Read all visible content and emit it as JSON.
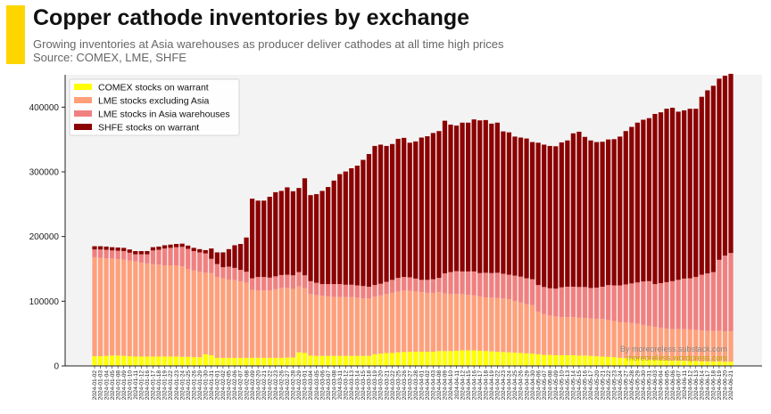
{
  "header": {
    "title": "Copper cathode inventories by exchange",
    "subtitle": "Growing inventories at Asia warehouses as producer deliver cathodes at all time high prices",
    "source": "Source: COMEX, LME, SHFE"
  },
  "credits": {
    "line1": "By moreoreless.substack.com",
    "line2": "moreoreless.wordpress.com"
  },
  "colors": {
    "accent": "#ffd500",
    "comex": "#ffff00",
    "lme_ex_asia": "#ffa07a",
    "lme_asia": "#f08080",
    "shfe": "#8b0000",
    "plot_bg": "#f3f3f3"
  },
  "chart_data": {
    "type": "bar",
    "stacked": true,
    "title": "Copper cathode inventories by exchange",
    "xlabel": "",
    "ylabel": "",
    "ylim": [
      0,
      450000
    ],
    "yticks": [
      0,
      100000,
      200000,
      300000,
      400000
    ],
    "ytick_labels": [
      "0",
      "100000",
      "200000",
      "300000",
      "400000"
    ],
    "legend_position": "top-left",
    "categories": [
      "2024-01-02",
      "2024-01-03",
      "2024-01-04",
      "2024-01-05",
      "2024-01-08",
      "2024-01-09",
      "2024-01-10",
      "2024-01-11",
      "2024-01-12",
      "2024-01-16",
      "2024-01-17",
      "2024-01-18",
      "2024-01-19",
      "2024-01-22",
      "2024-01-23",
      "2024-01-24",
      "2024-01-25",
      "2024-01-26",
      "2024-01-29",
      "2024-01-30",
      "2024-01-31",
      "2024-02-01",
      "2024-02-02",
      "2024-02-05",
      "2024-02-06",
      "2024-02-07",
      "2024-02-08",
      "2024-02-09",
      "2024-02-20",
      "2024-02-21",
      "2024-02-22",
      "2024-02-23",
      "2024-02-26",
      "2024-02-27",
      "2024-02-28",
      "2024-02-29",
      "2024-03-01",
      "2024-03-04",
      "2024-03-05",
      "2024-03-06",
      "2024-03-07",
      "2024-03-08",
      "2024-03-11",
      "2024-03-12",
      "2024-03-13",
      "2024-03-14",
      "2024-03-15",
      "2024-03-18",
      "2024-03-19",
      "2024-03-20",
      "2024-03-21",
      "2024-03-22",
      "2024-03-25",
      "2024-03-26",
      "2024-03-27",
      "2024-03-28",
      "2024-04-01",
      "2024-04-02",
      "2024-04-03",
      "2024-04-08",
      "2024-04-09",
      "2024-04-10",
      "2024-04-11",
      "2024-04-12",
      "2024-04-15",
      "2024-04-16",
      "2024-04-17",
      "2024-04-18",
      "2024-04-19",
      "2024-04-22",
      "2024-04-23",
      "2024-04-24",
      "2024-04-25",
      "2024-04-26",
      "2024-04-29",
      "2024-04-30",
      "2024-05-06",
      "2024-05-07",
      "2024-05-08",
      "2024-05-09",
      "2024-05-10",
      "2024-05-13",
      "2024-05-14",
      "2024-05-15",
      "2024-05-16",
      "2024-05-17",
      "2024-05-20",
      "2024-05-21",
      "2024-05-22",
      "2024-05-23",
      "2024-05-24",
      "2024-05-27",
      "2024-05-28",
      "2024-05-29",
      "2024-05-30",
      "2024-05-31",
      "2024-06-03",
      "2024-06-04",
      "2024-06-05",
      "2024-06-06",
      "2024-06-07",
      "2024-06-11",
      "2024-06-12",
      "2024-06-13",
      "2024-06-14",
      "2024-06-17",
      "2024-06-18",
      "2024-06-19",
      "2024-06-20",
      "2024-06-21"
    ],
    "series": [
      {
        "name": "COMEX stocks on warrant",
        "color": "#ffff00",
        "values": [
          15000,
          15000,
          15500,
          16000,
          16000,
          15500,
          15000,
          14500,
          14500,
          14500,
          14500,
          14500,
          14500,
          14500,
          14500,
          14000,
          14000,
          13500,
          13500,
          18000,
          16500,
          12500,
          12500,
          12500,
          12500,
          12500,
          12500,
          12500,
          12500,
          12500,
          12500,
          12500,
          12500,
          13000,
          13000,
          21000,
          20000,
          16000,
          15500,
          15500,
          15500,
          15500,
          15500,
          15500,
          15500,
          15500,
          15500,
          15500,
          18000,
          19000,
          20000,
          20000,
          21000,
          21500,
          22000,
          22000,
          22000,
          22000,
          22000,
          23000,
          23000,
          23000,
          23500,
          24000,
          24000,
          24000,
          23500,
          23000,
          22500,
          22000,
          21500,
          21000,
          20500,
          20000,
          19500,
          19000,
          18000,
          17000,
          17000,
          16500,
          16500,
          16500,
          16500,
          16000,
          16000,
          15500,
          15000,
          14500,
          14000,
          13500,
          12500,
          12000,
          11500,
          11000,
          10500,
          10000,
          9500,
          9000,
          8500,
          8000,
          8000,
          8000,
          7500,
          7500,
          7000,
          7000,
          7000,
          7000,
          6500,
          6500
        ]
      },
      {
        "name": "LME stocks excluding Asia",
        "color": "#ffa07a",
        "values": [
          153000,
          152000,
          151000,
          150000,
          149000,
          149000,
          148000,
          147000,
          145000,
          144000,
          143000,
          142000,
          141000,
          141000,
          141000,
          140000,
          136000,
          134000,
          132000,
          126000,
          127000,
          125000,
          123000,
          121000,
          120000,
          118000,
          116000,
          105000,
          104000,
          104000,
          104000,
          106000,
          108000,
          108000,
          106000,
          102000,
          100000,
          95000,
          94000,
          93000,
          92000,
          91000,
          91000,
          91000,
          91000,
          90000,
          89000,
          89000,
          89000,
          90000,
          91000,
          93000,
          94000,
          95000,
          94000,
          93000,
          92000,
          91000,
          91000,
          91000,
          89000,
          88000,
          88000,
          87000,
          86000,
          85000,
          84000,
          83000,
          83000,
          83000,
          83000,
          82000,
          80000,
          78000,
          76000,
          75000,
          66000,
          63000,
          61000,
          60000,
          59000,
          59000,
          59000,
          59000,
          58000,
          58000,
          58000,
          58000,
          57000,
          56000,
          55000,
          55000,
          55000,
          54000,
          53000,
          52000,
          51000,
          50000,
          49000,
          49000,
          49000,
          49000,
          49000,
          48000,
          48000,
          47000,
          47000,
          47000,
          47000,
          47000
        ]
      },
      {
        "name": "LME stocks in Asia warehouses",
        "color": "#f08080",
        "values": [
          12000,
          13000,
          13000,
          12500,
          13000,
          13000,
          12000,
          11000,
          13000,
          14000,
          21000,
          23000,
          26000,
          27000,
          28000,
          30000,
          31000,
          30000,
          30000,
          30000,
          22000,
          20000,
          17000,
          20000,
          19000,
          18000,
          17000,
          18000,
          21000,
          21000,
          20000,
          20000,
          20000,
          20000,
          21000,
          22000,
          20000,
          20000,
          19000,
          18000,
          19000,
          20000,
          20000,
          19000,
          19000,
          19000,
          19000,
          18000,
          18000,
          18000,
          19000,
          20000,
          21000,
          21000,
          21000,
          20000,
          19000,
          20000,
          21000,
          22000,
          31000,
          34000,
          35000,
          35000,
          36000,
          37000,
          36000,
          38000,
          38000,
          39000,
          38000,
          38000,
          39000,
          40000,
          40000,
          40000,
          41000,
          42000,
          42000,
          43000,
          46000,
          47000,
          47000,
          47000,
          48000,
          47000,
          48000,
          50000,
          54000,
          55000,
          57000,
          59000,
          61000,
          64000,
          67000,
          69000,
          66000,
          69000,
          72000,
          74000,
          76000,
          78000,
          79000,
          82000,
          86000,
          89000,
          91000,
          110000,
          117000,
          121000
        ]
      },
      {
        "name": "SHFE stocks on warrant",
        "color": "#8b0000",
        "values": [
          5000,
          5000,
          5000,
          5000,
          5000,
          5000,
          5000,
          5000,
          5000,
          5000,
          5000,
          5000,
          5000,
          5000,
          5000,
          5000,
          5000,
          5000,
          5000,
          5000,
          16000,
          18000,
          23000,
          27000,
          35000,
          40000,
          53000,
          123000,
          118000,
          118000,
          125000,
          130000,
          130000,
          135000,
          130000,
          130000,
          150000,
          133000,
          137000,
          144000,
          150000,
          160000,
          170000,
          175000,
          180000,
          185000,
          195000,
          205000,
          215000,
          215000,
          210000,
          210000,
          215000,
          215000,
          208000,
          212000,
          220000,
          222000,
          226000,
          227000,
          236000,
          228000,
          225000,
          230000,
          230000,
          235000,
          236000,
          236000,
          231000,
          232000,
          220000,
          220000,
          215000,
          215000,
          216000,
          212000,
          220000,
          220000,
          220000,
          220000,
          224000,
          226000,
          237000,
          240000,
          232000,
          228000,
          225000,
          224000,
          225000,
          226000,
          230000,
          237000,
          242000,
          247000,
          250000,
          252000,
          263000,
          264000,
          268000,
          268000,
          260000,
          260000,
          262000,
          260000,
          275000,
          283000,
          288000,
          280000,
          278000,
          277000
        ]
      }
    ]
  }
}
